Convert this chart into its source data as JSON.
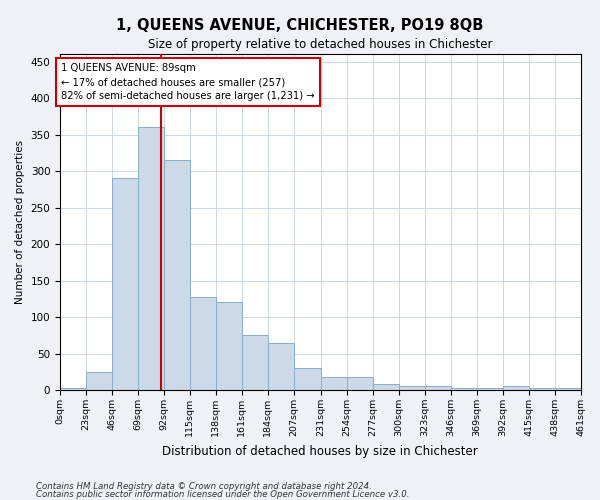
{
  "title": "1, QUEENS AVENUE, CHICHESTER, PO19 8QB",
  "subtitle": "Size of property relative to detached houses in Chichester",
  "xlabel": "Distribution of detached houses by size in Chichester",
  "ylabel": "Number of detached properties",
  "bar_color": "#ccd9e8",
  "bar_edge_color": "#8aaec8",
  "vline_x": 89,
  "vline_color": "#cc0000",
  "annotation_lines": [
    "1 QUEENS AVENUE: 89sqm",
    "← 17% of detached houses are smaller (257)",
    "82% of semi-detached houses are larger (1,231) →"
  ],
  "annotation_box_color": "#ffffff",
  "annotation_box_edge": "#cc0000",
  "bin_edges": [
    0,
    23,
    46,
    69,
    92,
    115,
    138,
    161,
    184,
    207,
    231,
    254,
    277,
    300,
    323,
    346,
    369,
    392,
    415,
    438,
    461
  ],
  "bar_heights": [
    3,
    25,
    290,
    360,
    315,
    128,
    120,
    75,
    65,
    30,
    18,
    18,
    8,
    5,
    5,
    3,
    3,
    5,
    3,
    3
  ],
  "ylim": [
    0,
    460
  ],
  "yticks": [
    0,
    50,
    100,
    150,
    200,
    250,
    300,
    350,
    400,
    450
  ],
  "footnote1": "Contains HM Land Registry data © Crown copyright and database right 2024.",
  "footnote2": "Contains public sector information licensed under the Open Government Licence v3.0.",
  "bg_color": "#eef2f6",
  "plot_bg_color": "#ffffff",
  "grid_color": "#c5d2de"
}
